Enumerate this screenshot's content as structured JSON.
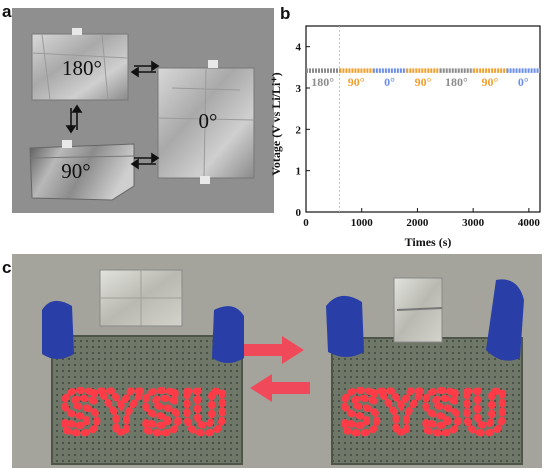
{
  "panels": {
    "a": "a",
    "b": "b",
    "c": "c"
  },
  "panel_a": {
    "angles": [
      "180°",
      "0°",
      "90°"
    ]
  },
  "panel_c": {
    "sign_text": "SYSU"
  },
  "chart_data": {
    "type": "line",
    "title": "",
    "xlabel": "Times (s)",
    "ylabel": "Votage (V vs Li/Li⁺)",
    "xlim": [
      0,
      4200
    ],
    "ylim": [
      0,
      4.5
    ],
    "xticks": [
      0,
      1000,
      2000,
      3000,
      4000
    ],
    "yticks": [
      0,
      1,
      2,
      3,
      4
    ],
    "series": [
      {
        "segments": [
          {
            "x": [
              0,
              600
            ],
            "y": [
              3.42,
              3.42
            ],
            "color": "#8c8c8c"
          },
          {
            "x": [
              600,
              1200
            ],
            "y": [
              3.42,
              3.42
            ],
            "color": "#f0a030"
          },
          {
            "x": [
              1200,
              1800
            ],
            "y": [
              3.42,
              3.42
            ],
            "color": "#6b8ee8"
          },
          {
            "x": [
              1800,
              2400
            ],
            "y": [
              3.42,
              3.42
            ],
            "color": "#f0a030"
          },
          {
            "x": [
              2400,
              3000
            ],
            "y": [
              3.42,
              3.42
            ],
            "color": "#8c8c8c"
          },
          {
            "x": [
              3000,
              3600
            ],
            "y": [
              3.42,
              3.42
            ],
            "color": "#f0a030"
          },
          {
            "x": [
              3600,
              4200
            ],
            "y": [
              3.42,
              3.42
            ],
            "color": "#6b8ee8"
          }
        ]
      }
    ],
    "annotations": [
      {
        "text": "180°",
        "x": 300,
        "y": 3.05,
        "color": "#8c8c8c"
      },
      {
        "text": "90°",
        "x": 900,
        "y": 3.05,
        "color": "#f0a030"
      },
      {
        "text": "0°",
        "x": 1500,
        "y": 3.05,
        "color": "#6b8ee8"
      },
      {
        "text": "90°",
        "x": 2100,
        "y": 3.05,
        "color": "#f0a030"
      },
      {
        "text": "180°",
        "x": 2700,
        "y": 3.05,
        "color": "#8c8c8c"
      },
      {
        "text": "90°",
        "x": 3300,
        "y": 3.05,
        "color": "#f0a030"
      },
      {
        "text": "0°",
        "x": 3900,
        "y": 3.05,
        "color": "#6b8ee8"
      }
    ],
    "divider_x": 600,
    "grid": false,
    "legend": "none"
  }
}
